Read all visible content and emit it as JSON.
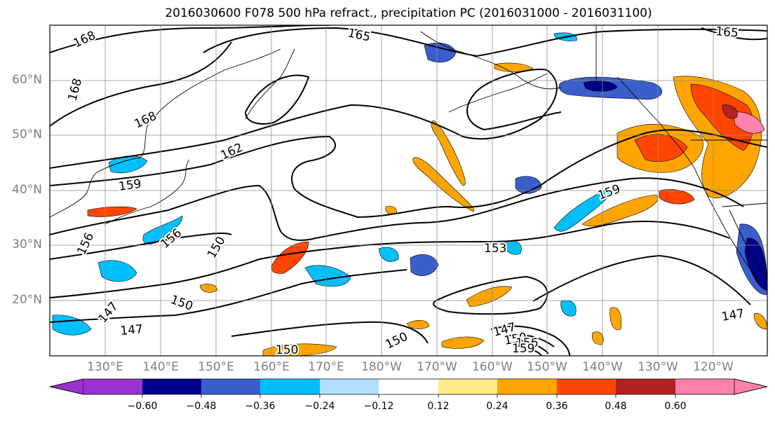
{
  "title": "2016030600 F078 500 hPa refract., precipitation PC (2016031000 - 2016031100)",
  "map": {
    "lat_labels": [
      "60°N",
      "50°N",
      "40°N",
      "30°N",
      "20°N"
    ],
    "lon_labels": [
      "130°E",
      "140°E",
      "150°E",
      "160°E",
      "170°E",
      "180°W",
      "170°W",
      "160°W",
      "150°W",
      "140°W",
      "130°W",
      "120°W"
    ],
    "contour_labels": [
      "168",
      "165",
      "168",
      "168",
      "162",
      "159",
      "156",
      "156",
      "150",
      "153",
      "159",
      "150",
      "147",
      "147",
      "147",
      "150",
      "150",
      "147",
      "150",
      "156",
      "159",
      "165"
    ]
  },
  "colorbar": {
    "colors": [
      "#9a32cd",
      "#00008b",
      "#3a5fcd",
      "#00bfff",
      "#b2dfff",
      "#ffffff",
      "#ffec8b",
      "#ffa500",
      "#ff4500",
      "#b22222",
      "#ff82ab"
    ],
    "tick_labels": [
      "−0.60",
      "−0.48",
      "−0.36",
      "−0.24",
      "−0.12",
      "0.12",
      "0.24",
      "0.36",
      "0.48",
      "0.60"
    ]
  }
}
